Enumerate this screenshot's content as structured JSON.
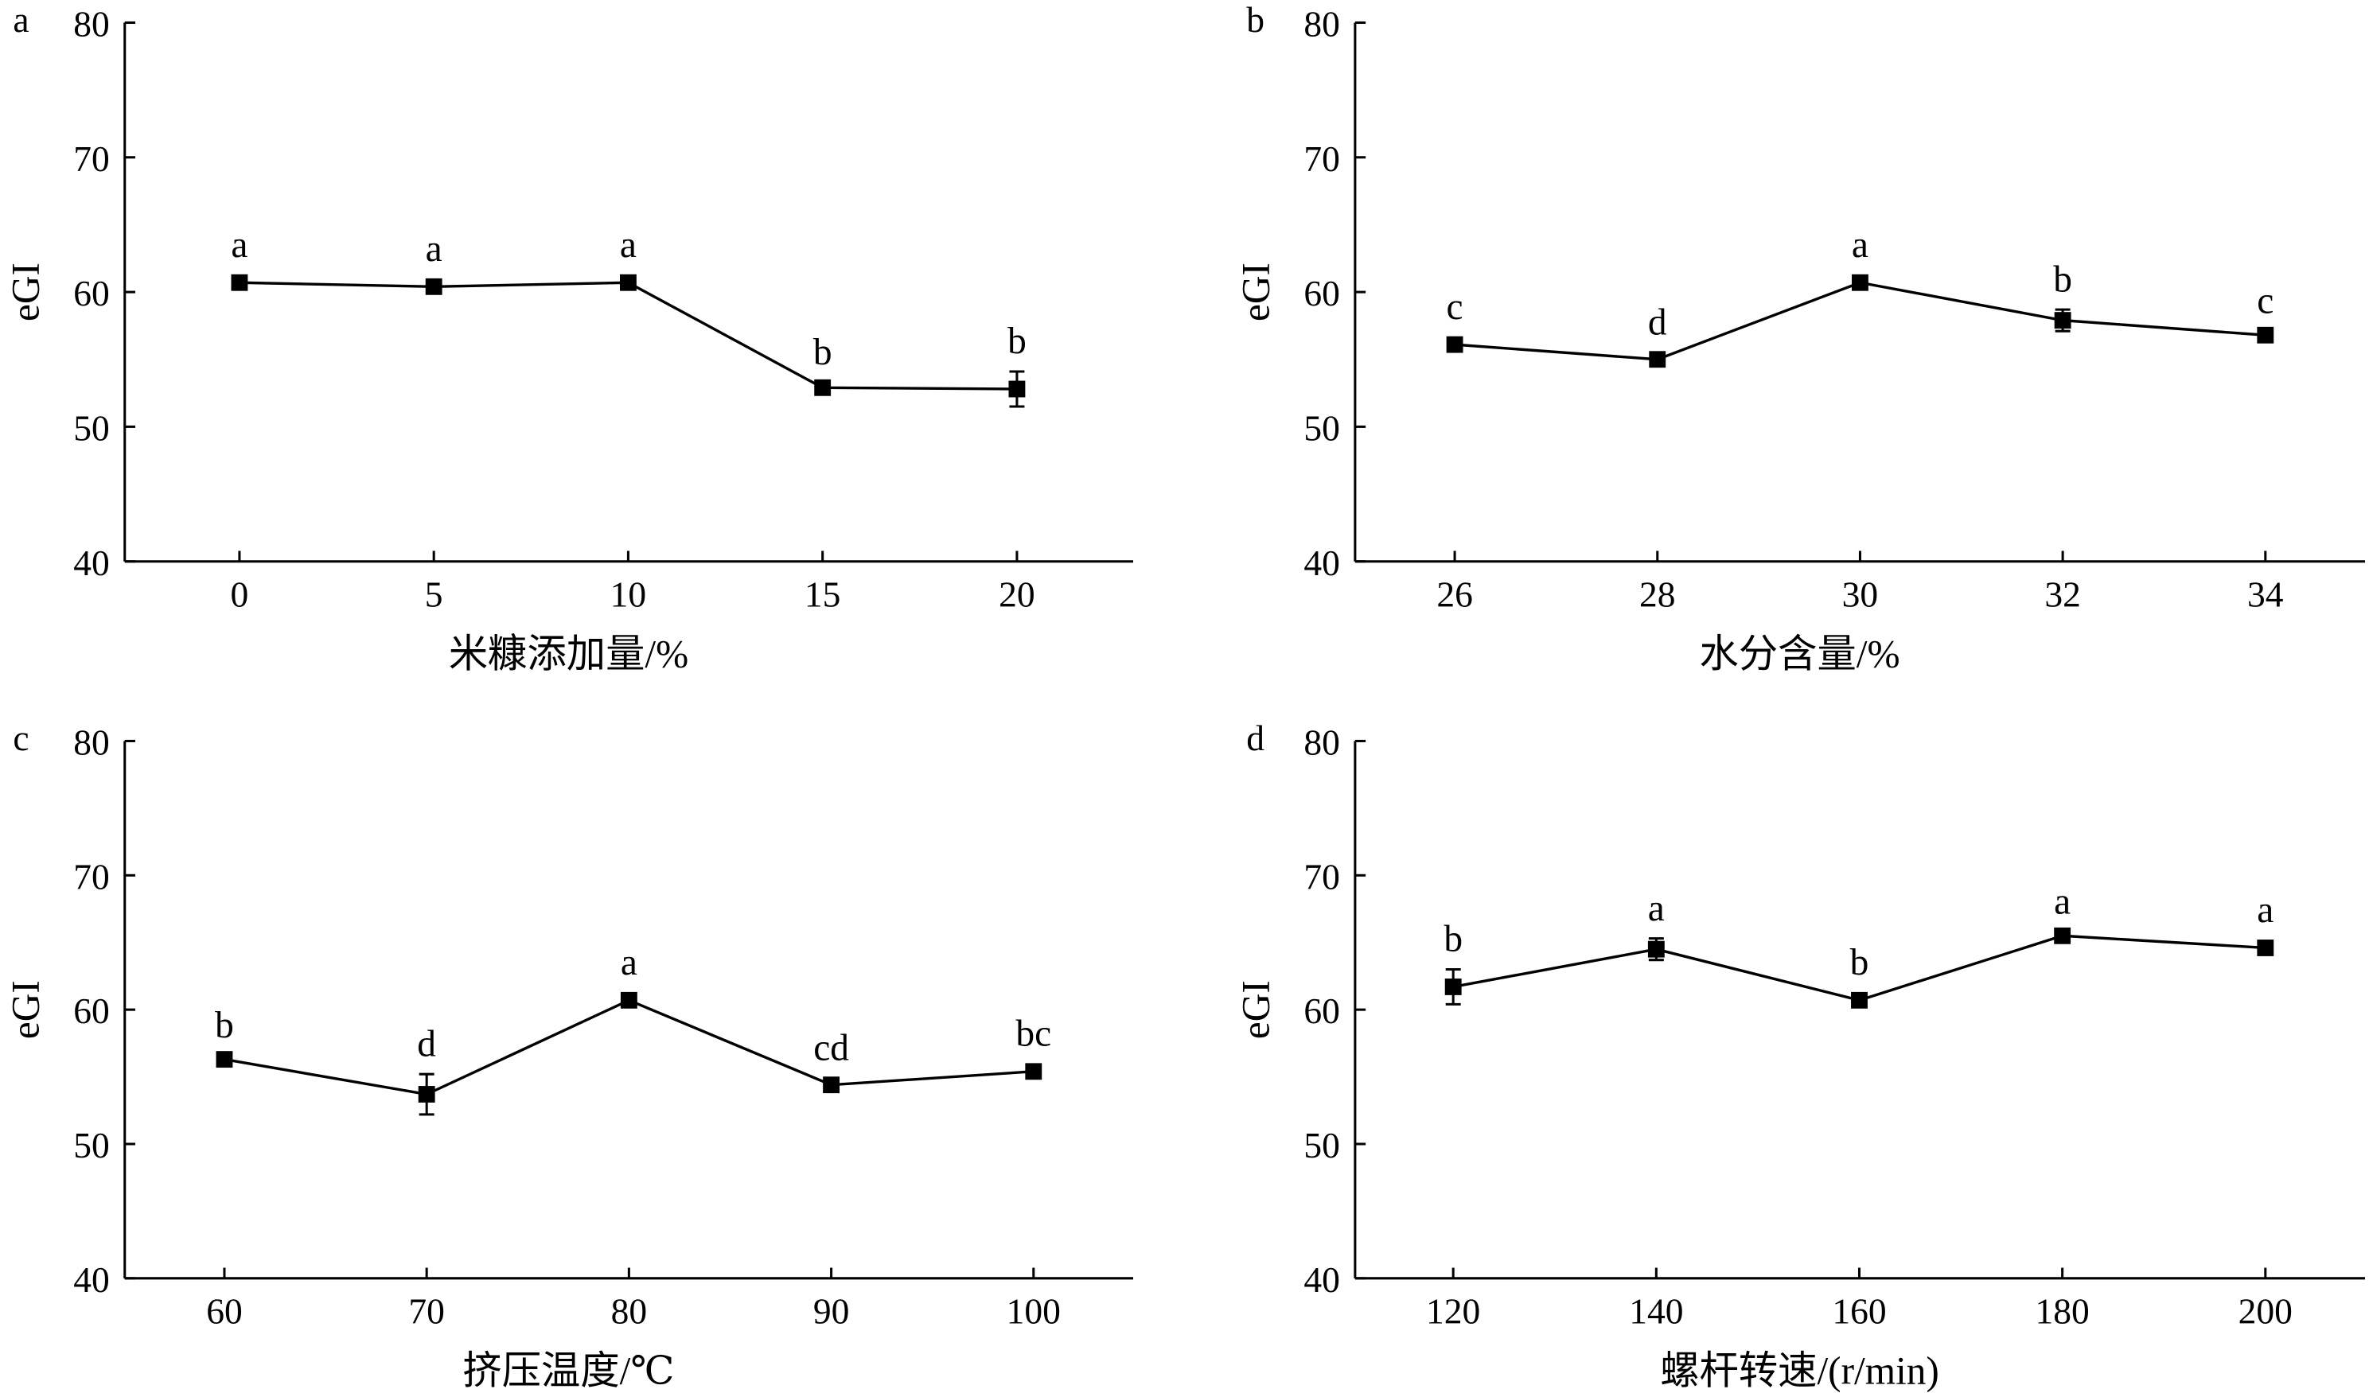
{
  "chart_data": [
    {
      "type": "line",
      "panel_label": "a",
      "xlabel": "米糠添加量/%",
      "ylabel": "eGI",
      "ylim": [
        40,
        80
      ],
      "yticks": [
        "40",
        "50",
        "60",
        "70",
        "80"
      ],
      "categories": [
        "0",
        "5",
        "10",
        "15",
        "20"
      ],
      "values": [
        60.7,
        60.4,
        60.7,
        52.9,
        52.8
      ],
      "errors": [
        0.2,
        0.2,
        0.2,
        0.4,
        1.3
      ],
      "letters": [
        "a",
        "a",
        "a",
        "b",
        "b"
      ]
    },
    {
      "type": "line",
      "panel_label": "b",
      "xlabel": "水分含量/%",
      "ylabel": "eGI",
      "ylim": [
        40,
        80
      ],
      "yticks": [
        "40",
        "50",
        "60",
        "70",
        "80"
      ],
      "categories": [
        "26",
        "28",
        "30",
        "32",
        "34"
      ],
      "values": [
        56.1,
        55.0,
        60.7,
        57.9,
        56.8
      ],
      "errors": [
        0.2,
        0.5,
        0.2,
        0.8,
        0.3
      ],
      "letters": [
        "c",
        "d",
        "a",
        "b",
        "c"
      ]
    },
    {
      "type": "line",
      "panel_label": "c",
      "xlabel": "挤压温度/℃",
      "ylabel": "eGI",
      "ylim": [
        40,
        80
      ],
      "yticks": [
        "40",
        "50",
        "60",
        "70",
        "80"
      ],
      "categories": [
        "60",
        "70",
        "80",
        "90",
        "100"
      ],
      "values": [
        56.3,
        53.7,
        60.7,
        54.4,
        55.4
      ],
      "errors": [
        0.3,
        1.5,
        0.2,
        0.5,
        0.2
      ],
      "letters": [
        "b",
        "d",
        "a",
        "cd",
        "bc"
      ]
    },
    {
      "type": "line",
      "panel_label": "d",
      "xlabel": "螺杆转速/(r/min)",
      "ylabel": "eGI",
      "ylim": [
        40,
        80
      ],
      "yticks": [
        "40",
        "50",
        "60",
        "70",
        "80"
      ],
      "categories": [
        "120",
        "140",
        "160",
        "180",
        "200"
      ],
      "values": [
        61.7,
        64.5,
        60.7,
        65.5,
        64.6
      ],
      "errors": [
        1.3,
        0.8,
        0.2,
        0.3,
        0.2
      ],
      "letters": [
        "b",
        "a",
        "b",
        "a",
        "a"
      ]
    }
  ]
}
